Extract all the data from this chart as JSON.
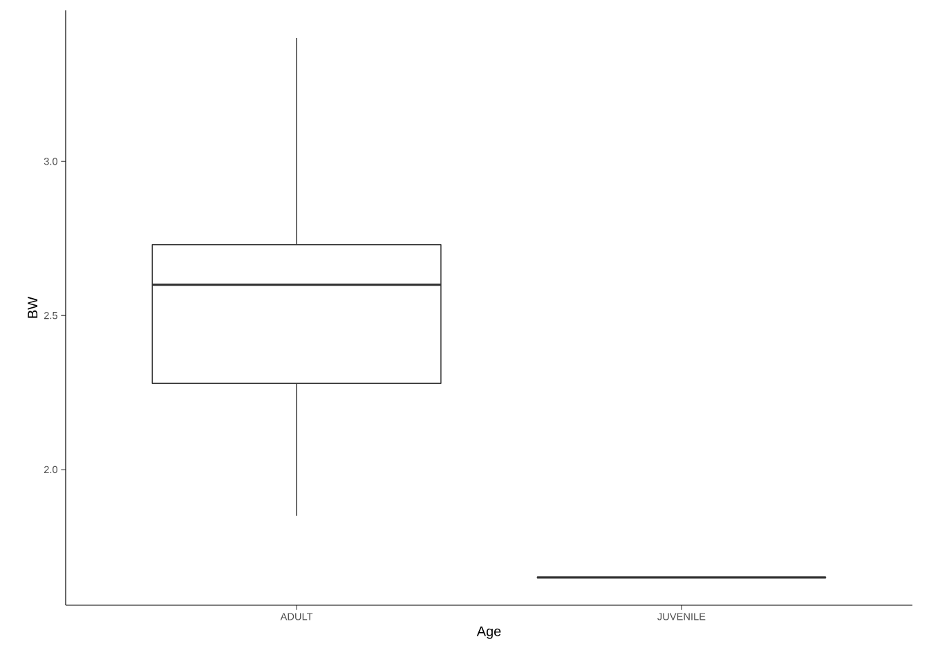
{
  "chart_data": {
    "type": "box",
    "xlabel": "Age",
    "ylabel": "BW",
    "categories": [
      "ADULT",
      "JUVENILE"
    ],
    "boxes": [
      {
        "low": 1.85,
        "q1": 2.28,
        "median": 2.6,
        "q3": 2.73,
        "high": 3.4
      },
      {
        "low": 1.65,
        "q1": 1.65,
        "median": 1.65,
        "q3": 1.65,
        "high": 1.65
      }
    ],
    "ylim": [
      1.56,
      3.49
    ],
    "yticks": [
      {
        "value": 2,
        "label": "2.0"
      },
      {
        "value": 2.5,
        "label": "2.5"
      },
      {
        "value": 3,
        "label": "3.0"
      }
    ]
  }
}
